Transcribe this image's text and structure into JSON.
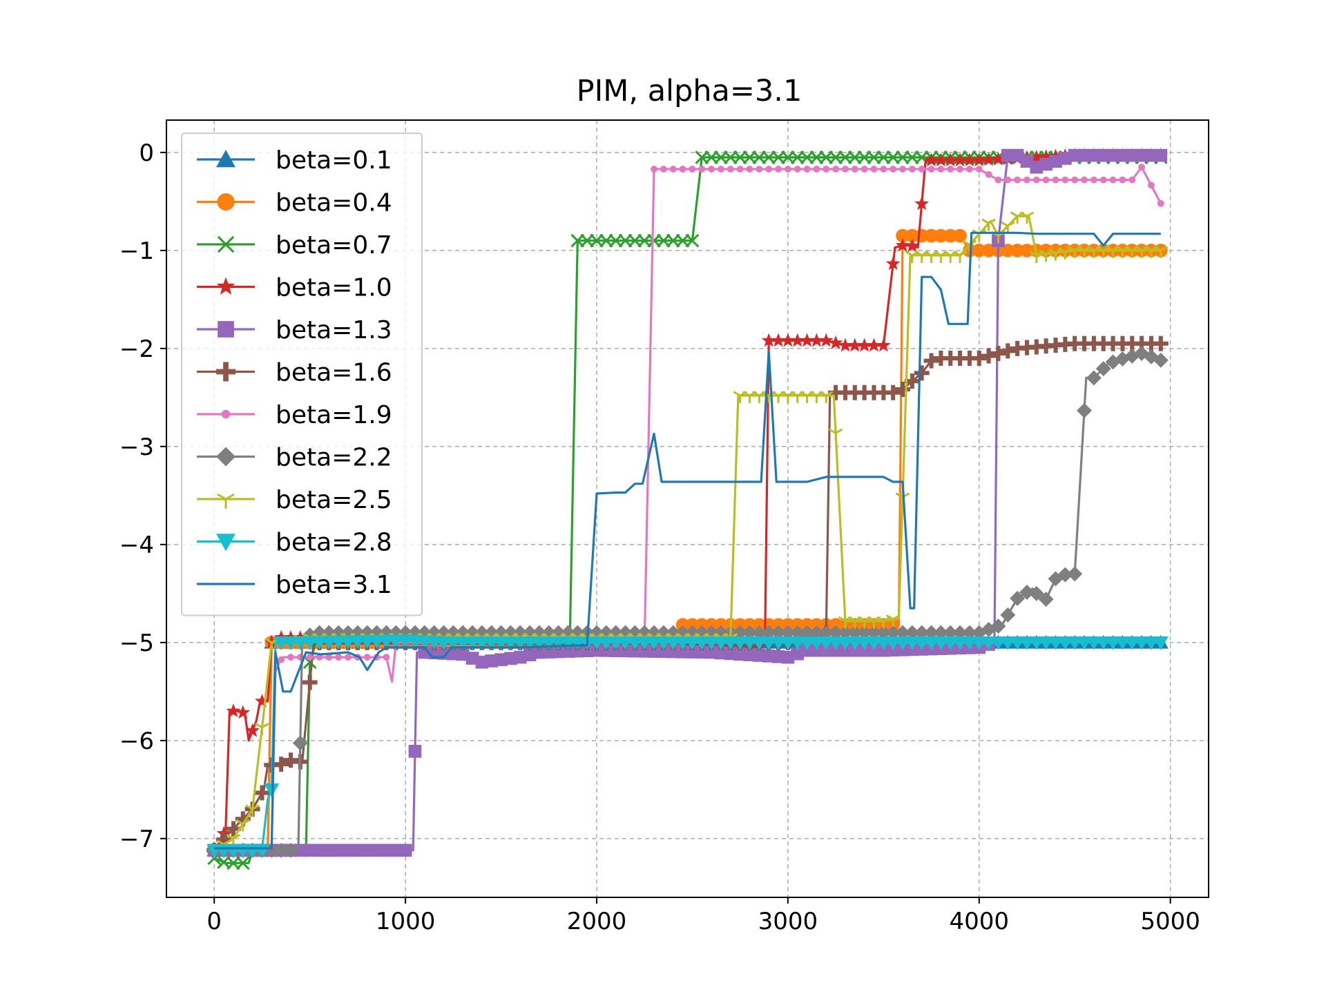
{
  "chart_data": {
    "type": "line",
    "title": "PIM, alpha=3.1",
    "xlabel": "",
    "ylabel": "",
    "xlim": [
      -250,
      5200
    ],
    "ylim": [
      -7.6,
      0.33
    ],
    "xticks": [
      0,
      1000,
      2000,
      3000,
      4000,
      5000
    ],
    "xtick_labels": [
      "0",
      "1000",
      "2000",
      "3000",
      "4000",
      "5000"
    ],
    "yticks": [
      0,
      -1,
      -2,
      -3,
      -4,
      -5,
      -6,
      -7
    ],
    "ytick_labels": [
      "0",
      "−1",
      "−2",
      "−3",
      "−4",
      "−5",
      "−6",
      "−7"
    ],
    "grid": true,
    "legend_position": "upper-left",
    "series": [
      {
        "name": "beta=0.1",
        "color": "#1f77b4",
        "marker": "triangle-up",
        "x": [
          0,
          280,
          300,
          320,
          1000,
          1200,
          1500,
          2000,
          2500,
          3000,
          3500,
          4000,
          4500,
          4950
        ],
        "y": [
          -7.12,
          -7.12,
          -5.0,
          -5.0,
          -5.0,
          -5.0,
          -5.0,
          -5.0,
          -5.0,
          -5.0,
          -5.0,
          -5.0,
          -5.0,
          -5.0
        ]
      },
      {
        "name": "beta=0.4",
        "color": "#ff7f0e",
        "marker": "circle",
        "x": [
          0,
          280,
          300,
          1000,
          2000,
          2400,
          2450,
          3000,
          3550,
          3580,
          3600,
          3650,
          3900,
          3950,
          4500,
          4950
        ],
        "y": [
          -7.12,
          -7.12,
          -5.0,
          -5.0,
          -5.0,
          -5.0,
          -4.82,
          -4.82,
          -4.82,
          -4.8,
          -0.85,
          -0.85,
          -0.85,
          -1.0,
          -1.0,
          -1.0
        ]
      },
      {
        "name": "beta=0.7",
        "color": "#2ca02c",
        "marker": "x",
        "x": [
          0,
          60,
          180,
          200,
          480,
          500,
          540,
          1000,
          1800,
          1860,
          1900,
          2000,
          2500,
          2550,
          3000,
          4000,
          4950
        ],
        "y": [
          -7.2,
          -7.25,
          -7.25,
          -7.12,
          -7.12,
          -5.2,
          -4.95,
          -4.95,
          -4.95,
          -4.95,
          -0.9,
          -0.9,
          -0.9,
          -0.05,
          -0.05,
          -0.05,
          -0.05
        ]
      },
      {
        "name": "beta=1.0",
        "color": "#d62728",
        "marker": "star",
        "x": [
          0,
          40,
          60,
          80,
          120,
          160,
          180,
          220,
          240,
          280,
          300,
          340,
          400,
          1000,
          2000,
          2880,
          2900,
          2940,
          3000,
          3200,
          3300,
          3500,
          3560,
          3600,
          3640,
          3680,
          3720,
          4000,
          4500,
          4950
        ],
        "y": [
          -7.12,
          -7.0,
          -6.9,
          -5.7,
          -5.7,
          -5.72,
          -6.0,
          -5.8,
          -5.6,
          -5.6,
          -5.0,
          -4.95,
          -4.95,
          -4.95,
          -5.0,
          -5.0,
          -1.92,
          -1.92,
          -1.92,
          -1.92,
          -1.97,
          -1.97,
          -0.97,
          -0.95,
          -0.95,
          -0.97,
          -0.08,
          -0.08,
          -0.03,
          -0.03
        ]
      },
      {
        "name": "beta=1.3",
        "color": "#9467bd",
        "marker": "square",
        "x": [
          0,
          500,
          1000,
          1040,
          1060,
          1100,
          1300,
          1400,
          1600,
          1700,
          2000,
          2600,
          3000,
          3100,
          3500,
          4000,
          4080,
          4100,
          4150,
          4200,
          4300,
          4500,
          4950
        ],
        "y": [
          -7.12,
          -7.12,
          -7.12,
          -7.12,
          -5.1,
          -5.1,
          -5.12,
          -5.2,
          -5.15,
          -5.1,
          -5.08,
          -5.1,
          -5.15,
          -5.08,
          -5.08,
          -5.05,
          -5.0,
          -0.9,
          -0.03,
          -0.03,
          -0.15,
          -0.03,
          -0.03
        ]
      },
      {
        "name": "beta=1.6",
        "color": "#8c564b",
        "marker": "plus",
        "x": [
          0,
          100,
          200,
          260,
          280,
          340,
          400,
          460,
          520,
          600,
          1000,
          3000,
          3200,
          3220,
          3260,
          3400,
          3500,
          3580,
          3700,
          3760,
          4000,
          4200,
          4500,
          4950
        ],
        "y": [
          -7.12,
          -6.9,
          -6.7,
          -6.5,
          -6.25,
          -6.25,
          -6.2,
          -6.22,
          -5.0,
          -5.0,
          -5.0,
          -5.0,
          -4.9,
          -2.45,
          -2.45,
          -2.45,
          -2.45,
          -2.45,
          -2.25,
          -2.1,
          -2.1,
          -2.0,
          -1.95,
          -1.95
        ]
      },
      {
        "name": "beta=1.9",
        "color": "#e377c2",
        "marker": "dot",
        "x": [
          0,
          300,
          320,
          340,
          360,
          400,
          600,
          700,
          800,
          900,
          930,
          950,
          1000,
          1500,
          2000,
          2250,
          2300,
          2500,
          3000,
          3500,
          4000,
          4100,
          4200,
          4500,
          4800,
          4850,
          4950
        ],
        "y": [
          -7.12,
          -7.12,
          -5.3,
          -5.2,
          -5.15,
          -5.15,
          -5.15,
          -5.15,
          -5.15,
          -5.15,
          -5.4,
          -5.0,
          -5.0,
          -5.0,
          -5.0,
          -5.0,
          -0.17,
          -0.17,
          -0.17,
          -0.17,
          -0.17,
          -0.28,
          -0.28,
          -0.28,
          -0.28,
          -0.15,
          -0.52
        ]
      },
      {
        "name": "beta=2.2",
        "color": "#7f7f7f",
        "marker": "diamond",
        "x": [
          0,
          300,
          400,
          440,
          460,
          540,
          1000,
          2000,
          3000,
          4000,
          4120,
          4200,
          4280,
          4340,
          4400,
          4460,
          4500,
          4560,
          4600,
          4680,
          4760,
          4850,
          4950
        ],
        "y": [
          -7.12,
          -7.12,
          -7.12,
          -7.1,
          -4.95,
          -4.9,
          -4.9,
          -4.9,
          -4.9,
          -4.9,
          -4.82,
          -4.55,
          -4.45,
          -4.6,
          -4.35,
          -4.3,
          -4.3,
          -2.3,
          -2.3,
          -2.15,
          -2.1,
          -2.05,
          -2.12
        ]
      },
      {
        "name": "beta=2.5",
        "color": "#bcbd22",
        "marker": "tri-down",
        "x": [
          0,
          100,
          200,
          260,
          300,
          320,
          500,
          1000,
          2000,
          2700,
          2740,
          3000,
          3200,
          3240,
          3300,
          3500,
          3580,
          3640,
          3700,
          3900,
          4060,
          4100,
          4200,
          4260,
          4300,
          4500,
          4950
        ],
        "y": [
          -7.12,
          -7.0,
          -6.7,
          -5.7,
          -5.0,
          -5.0,
          -4.95,
          -4.95,
          -4.95,
          -4.95,
          -2.48,
          -2.48,
          -2.48,
          -2.48,
          -4.78,
          -4.78,
          -4.75,
          -1.05,
          -1.05,
          -1.05,
          -0.7,
          -0.85,
          -0.65,
          -0.65,
          -1.05,
          -1.0,
          -1.0
        ]
      },
      {
        "name": "beta=2.8",
        "color": "#17becf",
        "marker": "triangle-down",
        "x": [
          0,
          250,
          280,
          300,
          320,
          400,
          1000,
          1200,
          2000,
          3000,
          4000,
          4500,
          4950
        ],
        "y": [
          -7.12,
          -7.12,
          -6.6,
          -6.5,
          -5.0,
          -5.0,
          -4.98,
          -5.0,
          -5.0,
          -5.0,
          -5.0,
          -5.0,
          -5.0
        ]
      },
      {
        "name": "beta=3.1",
        "color": "#1f77b4",
        "marker": "none",
        "x": [
          0,
          300,
          320,
          360,
          400,
          440,
          480,
          560,
          700,
          760,
          800,
          860,
          900,
          940,
          1100,
          1140,
          1200,
          1240,
          1500,
          1600,
          1900,
          1950,
          2000,
          2100,
          2150,
          2200,
          2240,
          2300,
          2340,
          2500,
          2860,
          2900,
          2940,
          3000,
          3100,
          3200,
          3500,
          3550,
          3600,
          3640,
          3660,
          3700,
          3750,
          3800,
          3840,
          3900,
          3940,
          3960,
          4000,
          4200,
          4300,
          4500,
          4600,
          4650,
          4700,
          4950
        ],
        "y": [
          -7.1,
          -7.1,
          -5.1,
          -5.5,
          -5.5,
          -5.3,
          -5.1,
          -5.12,
          -5.1,
          -5.15,
          -5.28,
          -5.1,
          -5.05,
          -5.05,
          -5.05,
          -5.15,
          -5.15,
          -5.05,
          -5.05,
          -5.05,
          -5.03,
          -5.03,
          -3.48,
          -3.47,
          -3.47,
          -3.38,
          -3.38,
          -2.87,
          -3.36,
          -3.36,
          -3.36,
          -2.03,
          -3.36,
          -3.36,
          -3.36,
          -3.31,
          -3.31,
          -3.36,
          -3.36,
          -4.65,
          -4.65,
          -1.27,
          -1.27,
          -1.4,
          -1.75,
          -1.75,
          -1.75,
          -0.82,
          -0.82,
          -0.82,
          -0.83,
          -0.83,
          -0.83,
          -0.95,
          -0.83,
          -0.83
        ]
      }
    ]
  }
}
